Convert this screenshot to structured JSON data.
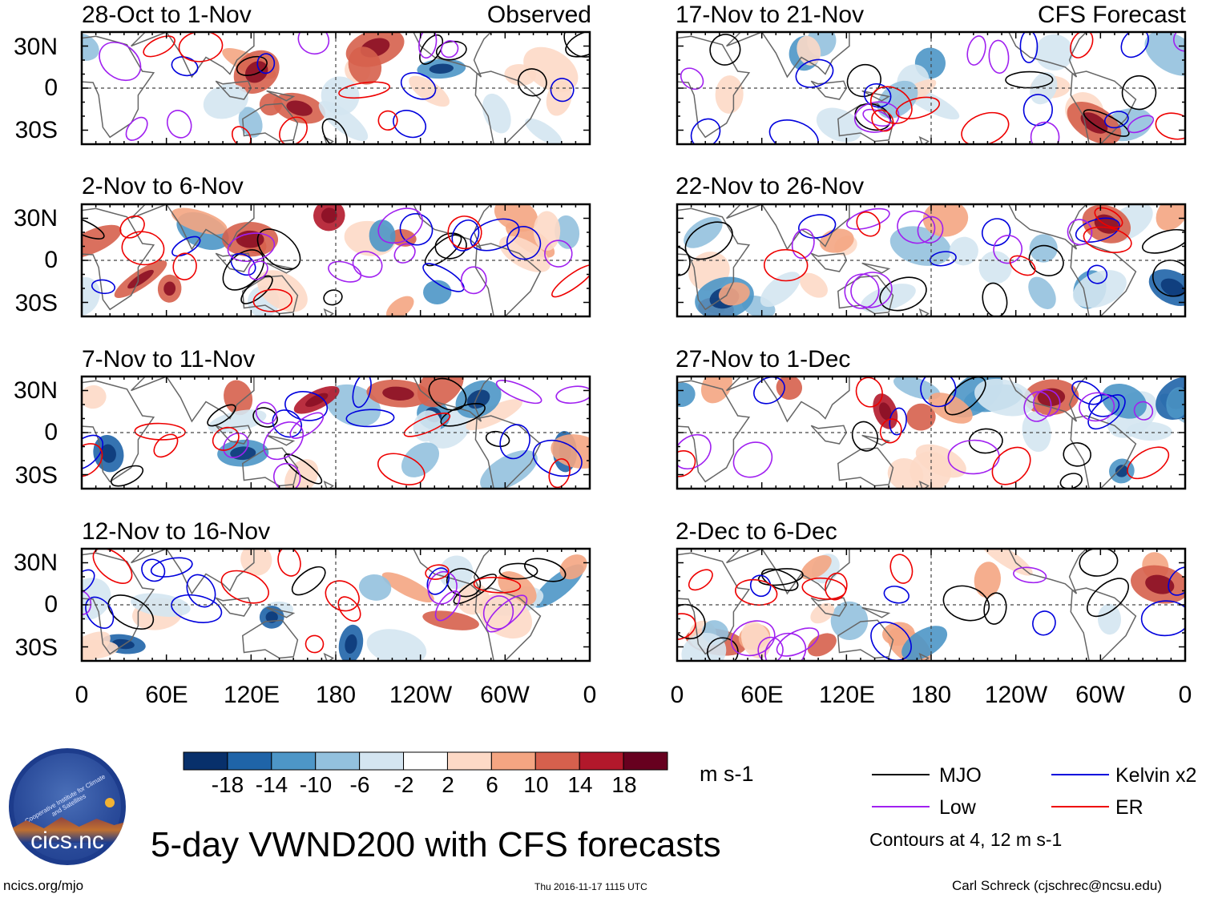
{
  "chart_data": {
    "type": "heatmap",
    "title": "5-day VWND200 with CFS forecasts",
    "variable": "VWND200",
    "units": "m s-1",
    "x_axis": {
      "ticks": [
        "0",
        "60E",
        "120E",
        "180",
        "120W",
        "60W",
        "0"
      ],
      "range_deg_east": [
        0,
        360
      ]
    },
    "y_axis": {
      "ticks": [
        "30N",
        "0",
        "30S"
      ],
      "range_deg": [
        -40,
        40
      ]
    },
    "panels": [
      {
        "label": "28-Oct to 1-Nov",
        "tag": "Observed",
        "column": "left",
        "row": 0
      },
      {
        "label": "2-Nov to 6-Nov",
        "tag": "",
        "column": "left",
        "row": 1
      },
      {
        "label": "7-Nov to 11-Nov",
        "tag": "",
        "column": "left",
        "row": 2
      },
      {
        "label": "12-Nov to 16-Nov",
        "tag": "",
        "column": "left",
        "row": 3
      },
      {
        "label": "17-Nov to 21-Nov",
        "tag": "CFS Forecast",
        "column": "right",
        "row": 0
      },
      {
        "label": "22-Nov to 26-Nov",
        "tag": "",
        "column": "right",
        "row": 1
      },
      {
        "label": "27-Nov to 1-Dec",
        "tag": "",
        "column": "right",
        "row": 2
      },
      {
        "label": "2-Dec to 6-Dec",
        "tag": "",
        "column": "right",
        "row": 3
      }
    ],
    "colorbar": {
      "tick_labels": [
        "-18",
        "-14",
        "-10",
        "-6",
        "-2",
        "2",
        "6",
        "10",
        "14",
        "18"
      ],
      "colors": [
        "#08306b",
        "#1f64a8",
        "#4d96c7",
        "#93c1de",
        "#d4e5f1",
        "#ffffff",
        "#fdd9c6",
        "#f4a582",
        "#d6604d",
        "#b2182b",
        "#67001f"
      ]
    },
    "legend": [
      {
        "name": "MJO",
        "color": "#000000"
      },
      {
        "name": "Kelvin x2",
        "color": "#0000dd"
      },
      {
        "name": "Low",
        "color": "#a020f0"
      },
      {
        "name": "ER",
        "color": "#ee0000"
      }
    ],
    "contour_note": "Contours at 4, 12 m s-1"
  },
  "footer": {
    "logo_text": "cics.nc",
    "logo_ring_text": "Cooperative Institute for Climate and Satellites",
    "site": "ncics.org/mjo",
    "timestamp": "Thu 2016-11-17 1115 UTC",
    "author": "Carl Schreck (cjschrec@ncsu.edu)"
  }
}
